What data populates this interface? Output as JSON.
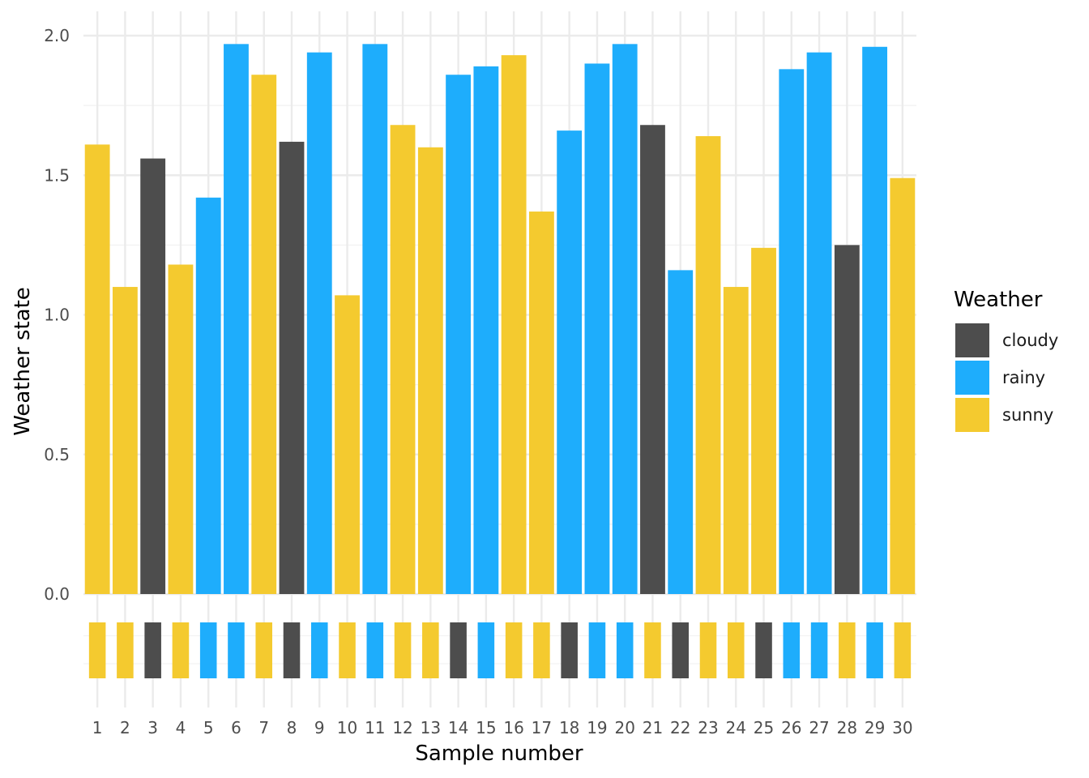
{
  "chart_data": {
    "type": "bar",
    "xlabel": "Sample number",
    "ylabel": "Weather state",
    "ylim": [
      0,
      2.0
    ],
    "y_ticks": [
      "0.0",
      "0.5",
      "1.0",
      "1.5",
      "2.0"
    ],
    "grid": true,
    "legend_placement": "right",
    "legend_title": "Weather",
    "categories": [
      "1",
      "2",
      "3",
      "4",
      "5",
      "6",
      "7",
      "8",
      "9",
      "10",
      "11",
      "12",
      "13",
      "14",
      "15",
      "16",
      "17",
      "18",
      "19",
      "20",
      "21",
      "22",
      "23",
      "24",
      "25",
      "26",
      "27",
      "28",
      "29",
      "30"
    ],
    "values": [
      1.61,
      1.1,
      1.56,
      1.18,
      1.42,
      1.97,
      1.86,
      1.62,
      1.94,
      1.07,
      1.97,
      1.68,
      1.6,
      1.86,
      1.89,
      1.93,
      1.37,
      1.66,
      1.9,
      1.97,
      1.68,
      1.16,
      1.64,
      1.1,
      1.24,
      1.88,
      1.94,
      1.25,
      1.96,
      1.49
    ],
    "bar_states": [
      "sunny",
      "sunny",
      "cloudy",
      "sunny",
      "rainy",
      "rainy",
      "sunny",
      "cloudy",
      "rainy",
      "sunny",
      "rainy",
      "sunny",
      "sunny",
      "rainy",
      "rainy",
      "sunny",
      "sunny",
      "rainy",
      "rainy",
      "rainy",
      "cloudy",
      "rainy",
      "sunny",
      "sunny",
      "sunny",
      "rainy",
      "rainy",
      "cloudy",
      "rainy",
      "sunny"
    ],
    "strip_states": [
      "sunny",
      "sunny",
      "cloudy",
      "sunny",
      "rainy",
      "rainy",
      "sunny",
      "cloudy",
      "rainy",
      "sunny",
      "rainy",
      "sunny",
      "sunny",
      "cloudy",
      "rainy",
      "sunny",
      "sunny",
      "cloudy",
      "rainy",
      "rainy",
      "sunny",
      "cloudy",
      "sunny",
      "sunny",
      "cloudy",
      "rainy",
      "rainy",
      "sunny",
      "rainy",
      "sunny"
    ],
    "legend": [
      {
        "key": "cloudy",
        "label": "cloudy",
        "color": "#4d4d4d"
      },
      {
        "key": "rainy",
        "label": "rainy",
        "color": "#1eadfc"
      },
      {
        "key": "sunny",
        "label": "sunny",
        "color": "#f4ca2f"
      }
    ]
  }
}
